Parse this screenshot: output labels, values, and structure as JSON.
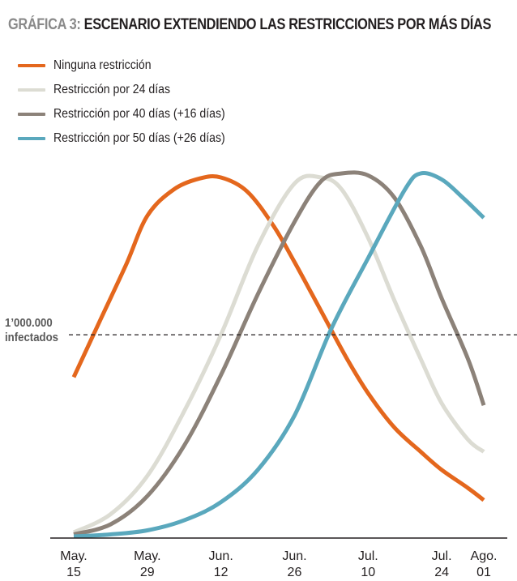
{
  "title": {
    "prefix": "GRÁFICA 3:",
    "main": "ESCENARIO EXTENDIENDO LAS RESTRICCIONES POR MÁS DÍAS"
  },
  "legend": [
    {
      "label": "Ninguna restricción",
      "color": "#e4671d"
    },
    {
      "label": "Restricción por 24 días",
      "color": "#dcdcd3"
    },
    {
      "label": "Restricción por 40 días (+16 días)",
      "color": "#8c8279"
    },
    {
      "label": "Restricción por 50 días (+26 días)",
      "color": "#5aa8bd"
    }
  ],
  "reference_line": {
    "value": "1’000.000",
    "label": "infectados"
  },
  "chart_data": {
    "type": "line",
    "xlabel": "",
    "ylabel": "",
    "x_ticks": [
      {
        "month": "May.",
        "day": "15",
        "date": "2020-05-15"
      },
      {
        "month": "May.",
        "day": "29",
        "date": "2020-05-29"
      },
      {
        "month": "Jun.",
        "day": "12",
        "date": "2020-06-12"
      },
      {
        "month": "Jun.",
        "day": "26",
        "date": "2020-06-26"
      },
      {
        "month": "Jul.",
        "day": "10",
        "date": "2020-07-10"
      },
      {
        "month": "Jul.",
        "day": "24",
        "date": "2020-07-24"
      },
      {
        "month": "Ago.",
        "day": "01",
        "date": "2020-08-01"
      }
    ],
    "xlim": [
      "2020-05-15",
      "2020-08-01"
    ],
    "ylim": [
      0,
      1800000
    ],
    "reference_y": 1000000,
    "y_unit": "infectados",
    "grid": false,
    "legend_position": "top-left",
    "series": [
      {
        "name": "Ninguna restricción",
        "color": "#e4671d",
        "points": [
          [
            "2020-05-15",
            790000
          ],
          [
            "2020-05-20",
            1070000
          ],
          [
            "2020-05-25",
            1350000
          ],
          [
            "2020-05-29",
            1590000
          ],
          [
            "2020-06-03",
            1720000
          ],
          [
            "2020-06-08",
            1775000
          ],
          [
            "2020-06-12",
            1780000
          ],
          [
            "2020-06-17",
            1710000
          ],
          [
            "2020-06-22",
            1540000
          ],
          [
            "2020-06-26",
            1360000
          ],
          [
            "2020-07-01",
            1120000
          ],
          [
            "2020-07-06",
            880000
          ],
          [
            "2020-07-10",
            710000
          ],
          [
            "2020-07-15",
            540000
          ],
          [
            "2020-07-20",
            420000
          ],
          [
            "2020-07-24",
            330000
          ],
          [
            "2020-07-29",
            240000
          ],
          [
            "2020-08-01",
            180000
          ]
        ]
      },
      {
        "name": "Restricción por 24 días",
        "color": "#dcdcd3",
        "points": [
          [
            "2020-05-15",
            20000
          ],
          [
            "2020-05-22",
            110000
          ],
          [
            "2020-05-29",
            300000
          ],
          [
            "2020-06-05",
            620000
          ],
          [
            "2020-06-12",
            1000000
          ],
          [
            "2020-06-19",
            1440000
          ],
          [
            "2020-06-26",
            1750000
          ],
          [
            "2020-07-01",
            1780000
          ],
          [
            "2020-07-05",
            1720000
          ],
          [
            "2020-07-10",
            1480000
          ],
          [
            "2020-07-15",
            1170000
          ],
          [
            "2020-07-20",
            880000
          ],
          [
            "2020-07-24",
            660000
          ],
          [
            "2020-07-29",
            480000
          ],
          [
            "2020-08-01",
            420000
          ]
        ]
      },
      {
        "name": "Restricción por 40 días (+16 días)",
        "color": "#8c8279",
        "points": [
          [
            "2020-05-15",
            10000
          ],
          [
            "2020-05-22",
            60000
          ],
          [
            "2020-05-29",
            200000
          ],
          [
            "2020-06-05",
            450000
          ],
          [
            "2020-06-12",
            800000
          ],
          [
            "2020-06-19",
            1200000
          ],
          [
            "2020-06-26",
            1560000
          ],
          [
            "2020-07-01",
            1760000
          ],
          [
            "2020-07-05",
            1800000
          ],
          [
            "2020-07-10",
            1790000
          ],
          [
            "2020-07-15",
            1680000
          ],
          [
            "2020-07-20",
            1440000
          ],
          [
            "2020-07-24",
            1180000
          ],
          [
            "2020-07-29",
            880000
          ],
          [
            "2020-08-01",
            650000
          ]
        ]
      },
      {
        "name": "Restricción por 50 días (+26 días)",
        "color": "#5aa8bd",
        "points": [
          [
            "2020-05-15",
            0
          ],
          [
            "2020-05-22",
            10000
          ],
          [
            "2020-05-29",
            30000
          ],
          [
            "2020-06-05",
            80000
          ],
          [
            "2020-06-12",
            170000
          ],
          [
            "2020-06-19",
            330000
          ],
          [
            "2020-06-26",
            600000
          ],
          [
            "2020-07-03",
            1030000
          ],
          [
            "2020-07-10",
            1380000
          ],
          [
            "2020-07-17",
            1720000
          ],
          [
            "2020-07-20",
            1800000
          ],
          [
            "2020-07-24",
            1770000
          ],
          [
            "2020-07-28",
            1680000
          ],
          [
            "2020-08-01",
            1580000
          ]
        ]
      }
    ]
  }
}
